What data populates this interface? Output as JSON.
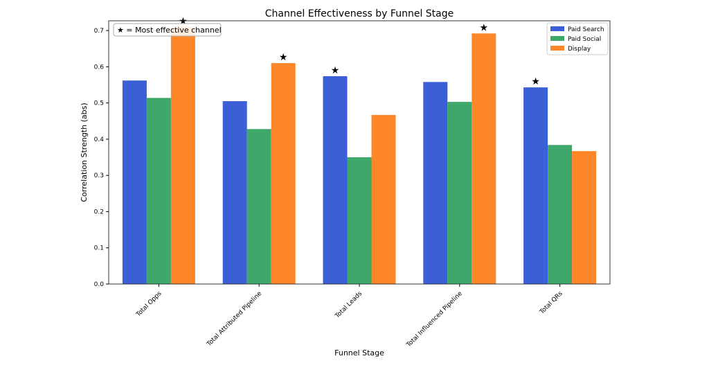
{
  "chart_data": {
    "type": "bar",
    "title": "Channel Effectiveness by Funnel Stage",
    "xlabel": "Funnel Stage",
    "ylabel": "Correlation Strength (abs)",
    "ylim": [
      0,
      0.727
    ],
    "yticks": [
      "0.0",
      "0.1",
      "0.2",
      "0.3",
      "0.4",
      "0.5",
      "0.6",
      "0.7"
    ],
    "categories": [
      "Total Opps",
      "Total Attributed Pipeline",
      "Total Leads",
      "Total Influenced Pipeline",
      "Total QRs"
    ],
    "series": [
      {
        "name": "Paid Search",
        "color": "#3a5fd6",
        "values": [
          0.562,
          0.505,
          0.574,
          0.558,
          0.543
        ]
      },
      {
        "name": "Paid Social",
        "color": "#3da86a",
        "values": [
          0.514,
          0.428,
          0.35,
          0.503,
          0.384
        ]
      },
      {
        "name": "Display",
        "color": "#fd8628",
        "values": [
          0.71,
          0.61,
          0.467,
          0.692,
          0.367
        ]
      }
    ],
    "legend_position": "top-right",
    "annotation": "★ = Most effective channel",
    "star_marker": "★",
    "best_series_index": [
      2,
      2,
      0,
      2,
      0
    ]
  }
}
